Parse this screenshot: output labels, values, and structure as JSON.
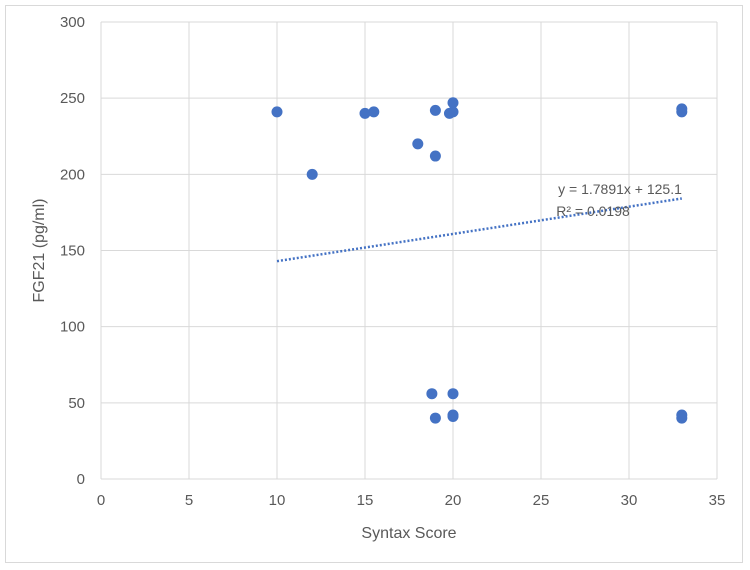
{
  "chart_data": {
    "type": "scatter",
    "title": "",
    "xlabel": "Syntax Score",
    "ylabel": "FGF21 (pg/ml)",
    "xlim": [
      0,
      35
    ],
    "ylim": [
      0,
      300
    ],
    "xticks": [
      0,
      5,
      10,
      15,
      20,
      25,
      30,
      35
    ],
    "yticks": [
      0,
      50,
      100,
      150,
      200,
      250,
      300
    ],
    "grid": true,
    "legend": "none",
    "series": [
      {
        "color": "#4472c4",
        "points": [
          {
            "x": 10,
            "y": 241
          },
          {
            "x": 12,
            "y": 200
          },
          {
            "x": 15,
            "y": 240
          },
          {
            "x": 15.5,
            "y": 241
          },
          {
            "x": 18,
            "y": 220
          },
          {
            "x": 19,
            "y": 242
          },
          {
            "x": 19,
            "y": 212
          },
          {
            "x": 19.8,
            "y": 240
          },
          {
            "x": 20,
            "y": 247
          },
          {
            "x": 20,
            "y": 241
          },
          {
            "x": 33,
            "y": 243
          },
          {
            "x": 33,
            "y": 241
          },
          {
            "x": 18.8,
            "y": 56
          },
          {
            "x": 19,
            "y": 40
          },
          {
            "x": 20,
            "y": 56
          },
          {
            "x": 20,
            "y": 42
          },
          {
            "x": 20,
            "y": 41
          },
          {
            "x": 33,
            "y": 42
          },
          {
            "x": 33,
            "y": 40
          }
        ]
      }
    ],
    "trendline": {
      "type": "linear",
      "slope": 1.7891,
      "intercept": 125.1,
      "x_range": [
        10,
        33
      ],
      "style": "dotted",
      "color": "#4472c4",
      "equation_label": "y = 1.7891x + 125.1",
      "r2_label": "R² = 0.0198"
    },
    "colors": {
      "grid": "#d9d9d9",
      "text": "#595959"
    }
  }
}
